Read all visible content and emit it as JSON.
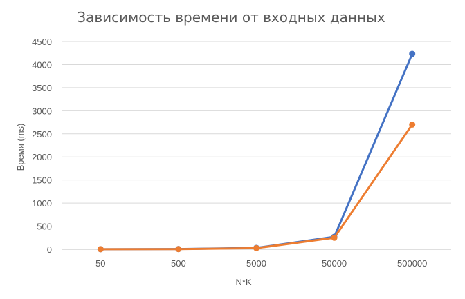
{
  "chart_data": {
    "type": "line",
    "title": "Зависимость времени от входных данных",
    "xlabel": "N*K",
    "ylabel": "Время (ms)",
    "categories": [
      "50",
      "500",
      "5000",
      "50000",
      "500000"
    ],
    "ylim": [
      0,
      4500
    ],
    "yticks": [
      0,
      500,
      1000,
      1500,
      2000,
      2500,
      3000,
      3500,
      4000,
      4500
    ],
    "grid": true,
    "legend": "none",
    "series": [
      {
        "color": "#4472C4",
        "values": [
          2,
          5,
          30,
          270,
          4230
        ]
      },
      {
        "color": "#ED7D31",
        "values": [
          2,
          4,
          25,
          250,
          2700
        ]
      }
    ]
  }
}
